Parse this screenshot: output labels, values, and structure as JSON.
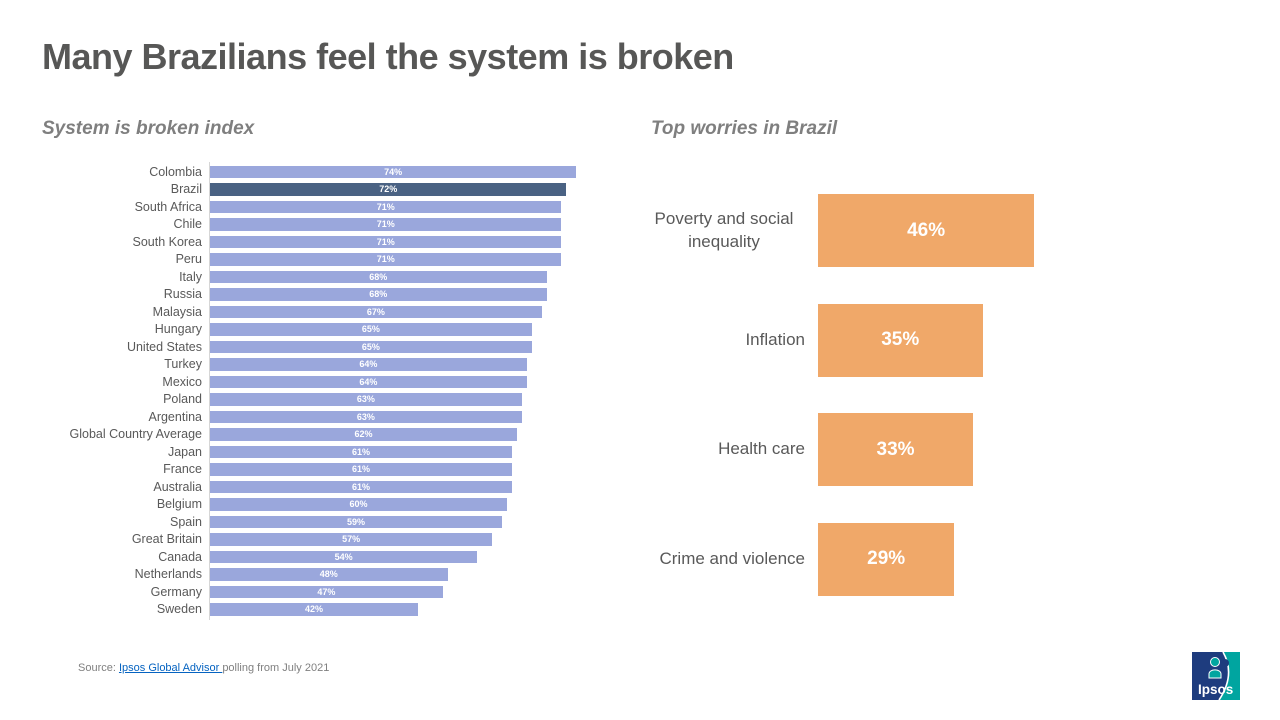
{
  "page": {
    "title": "Many Brazilians feel the system is broken"
  },
  "footer": {
    "source_prefix": "Source: ",
    "source_link_text": "Ipsos Global Advisor ",
    "source_suffix": "polling from July 2021"
  },
  "logo": {
    "brand": "Ipsos"
  },
  "colors": {
    "bar_light_blue": "#9AA7DC",
    "bar_highlight_navy": "#4A6283",
    "bar_orange": "#F0A869",
    "title_gray": "#575756",
    "subtitle_gray": "#7F7F7F",
    "label_gray": "#595959",
    "link_blue": "#0563C1",
    "logo_navy": "#1E3C7E",
    "logo_teal": "#00A5A0"
  },
  "chart_data": [
    {
      "type": "bar",
      "orientation": "horizontal",
      "title": "System is broken index",
      "unit": "%",
      "xlim": [
        0,
        100
      ],
      "grid": false,
      "value_labels": "inside-center-white",
      "highlight_category": "Brazil",
      "categories": [
        "Colombia",
        "Brazil",
        "South Africa",
        "Chile",
        "South Korea",
        "Peru",
        "Italy",
        "Russia",
        "Malaysia",
        "Hungary",
        "United States",
        "Turkey",
        "Mexico",
        "Poland",
        "Argentina",
        "Global Country Average",
        "Japan",
        "France",
        "Australia",
        "Belgium",
        "Spain",
        "Great Britain",
        "Canada",
        "Netherlands",
        "Germany",
        "Sweden"
      ],
      "values": [
        74,
        72,
        71,
        71,
        71,
        71,
        68,
        68,
        67,
        65,
        65,
        64,
        64,
        63,
        63,
        62,
        61,
        61,
        61,
        60,
        59,
        57,
        54,
        48,
        47,
        42
      ]
    },
    {
      "type": "bar",
      "orientation": "horizontal",
      "title": "Top worries in Brazil",
      "unit": "%",
      "xlim": [
        0,
        100
      ],
      "grid": false,
      "value_labels": "inside-center-white",
      "categories": [
        "Poverty and social inequality",
        "Inflation",
        "Health care",
        "Crime and violence"
      ],
      "values": [
        46,
        35,
        33,
        29
      ]
    }
  ]
}
